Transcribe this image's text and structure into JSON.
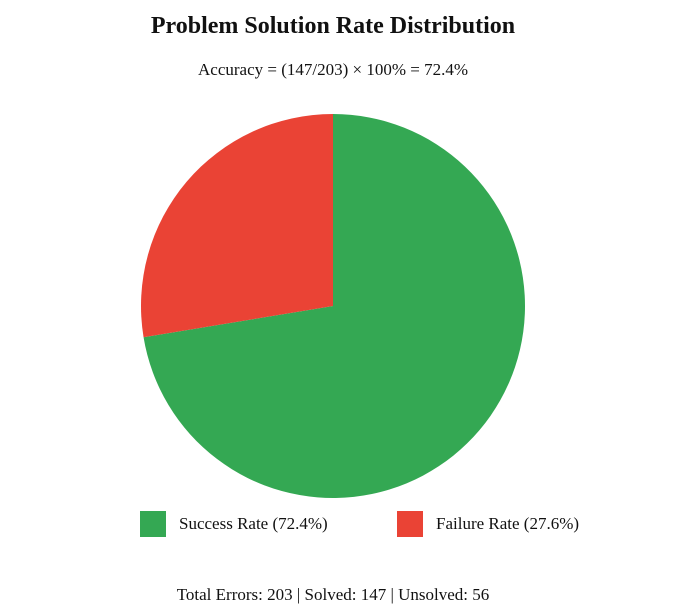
{
  "chart_data": {
    "type": "pie",
    "title": "Problem Solution Rate Distribution",
    "subtitle": "Accuracy = (147/203) × 100% = 72.4%",
    "slices": [
      {
        "label": "Success Rate (72.4%)",
        "value": 72.4,
        "color": "#34a853"
      },
      {
        "label": "Failure Rate (27.6%)",
        "value": 27.6,
        "color": "#ea4335"
      }
    ],
    "legend_position": "bottom",
    "footer": "Total Errors: 203 | Solved: 147 | Unsolved: 56"
  }
}
